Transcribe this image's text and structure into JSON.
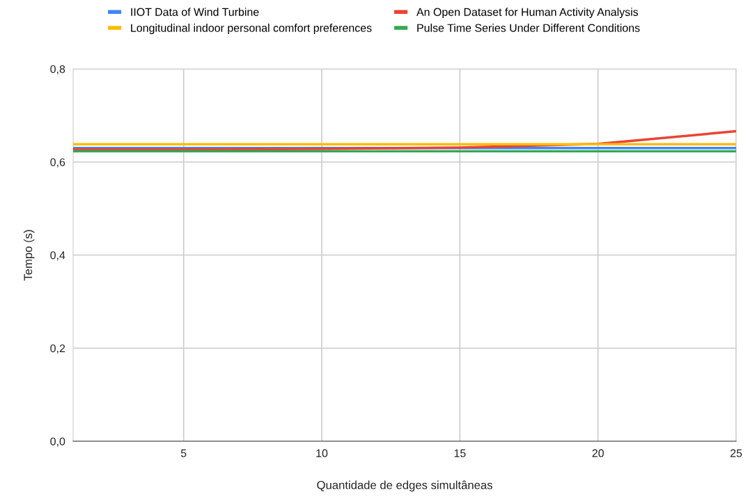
{
  "chart_data": {
    "type": "line",
    "xlabel": "Quantidade de edges simultâneas",
    "ylabel": "Tempo (s)",
    "x": [
      1,
      5,
      10,
      15,
      20,
      25
    ],
    "series": [
      {
        "name": "IIOT Data of Wind Turbine",
        "color": "#4285f4",
        "values": [
          0.63,
          0.63,
          0.63,
          0.63,
          0.63,
          0.63
        ]
      },
      {
        "name": "An Open Dataset for Human Activity Analysis",
        "color": "#ea4335",
        "values": [
          0.627,
          0.627,
          0.628,
          0.631,
          0.639,
          0.666
        ]
      },
      {
        "name": "Longitudinal indoor personal comfort preferences",
        "color": "#fbbc04",
        "values": [
          0.638,
          0.638,
          0.638,
          0.638,
          0.638,
          0.638
        ]
      },
      {
        "name": "Pulse Time Series Under Different Conditions",
        "color": "#34a853",
        "values": [
          0.623,
          0.623,
          0.623,
          0.623,
          0.623,
          0.623
        ]
      }
    ],
    "xlim": [
      1,
      25
    ],
    "xticks": [
      5,
      10,
      15,
      20,
      25
    ],
    "ylim": [
      0,
      0.8
    ],
    "yticks": [
      {
        "value": 0,
        "label": "0,0"
      },
      {
        "value": 0.2,
        "label": "0,2"
      },
      {
        "value": 0.4,
        "label": "0,4"
      },
      {
        "value": 0.6,
        "label": "0,6"
      },
      {
        "value": 0.8,
        "label": "0,8"
      }
    ],
    "grid": true,
    "legend": "top",
    "marker": "none",
    "line_style": "solid"
  }
}
